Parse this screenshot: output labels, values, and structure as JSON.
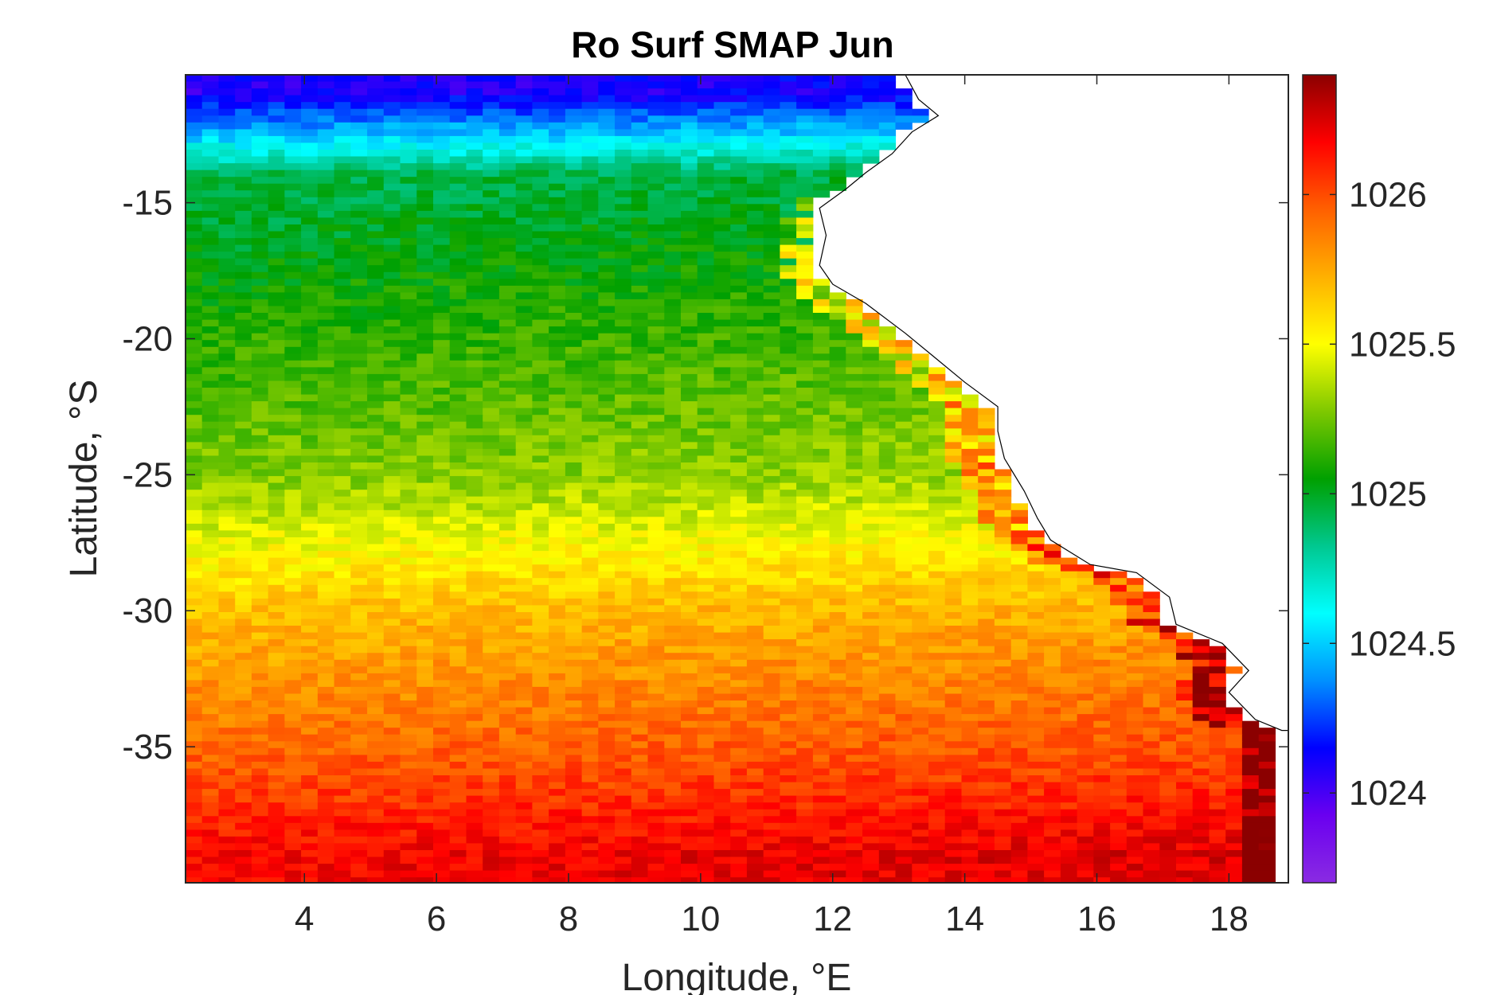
{
  "chart_data": {
    "type": "heatmap",
    "title": "Ro Surf SMAP Jun",
    "xlabel": "Longitude, °E",
    "ylabel": "Latitude, °S",
    "xlim": [
      2.2,
      18.9
    ],
    "ylim": [
      -40,
      -10.3
    ],
    "xticks": [
      4,
      6,
      8,
      10,
      12,
      14,
      16,
      18
    ],
    "yticks": [
      -15,
      -20,
      -25,
      -30,
      -35
    ],
    "colorbar": {
      "range": [
        1023.7,
        1026.4
      ],
      "ticks": [
        1024,
        1024.5,
        1025,
        1025.5,
        1026
      ],
      "colormap": [
        "#8a2be2",
        "#6a00f0",
        "#0000ff",
        "#0090ff",
        "#00ffff",
        "#00c890",
        "#00a000",
        "#7ec800",
        "#ffff00",
        "#ffb000",
        "#ff6000",
        "#ff0000",
        "#8b0000"
      ]
    },
    "grid_resolution_deg": 0.25,
    "field_description_points": [
      {
        "lat": -11,
        "value": 1024.1
      },
      {
        "lat": -12.5,
        "value": 1024.5
      },
      {
        "lat": -14,
        "value": 1024.95
      },
      {
        "lat": -20,
        "value": 1025.15
      },
      {
        "lat": -25,
        "value": 1025.3
      },
      {
        "lat": -30,
        "value": 1025.7
      },
      {
        "lat": -35,
        "value": 1025.95
      },
      {
        "lat": -39,
        "value": 1026.2
      }
    ],
    "coastline": [
      [
        13.1,
        -10.3
      ],
      [
        13.3,
        -11.2
      ],
      [
        13.6,
        -11.8
      ],
      [
        13.2,
        -12.4
      ],
      [
        12.9,
        -13.2
      ],
      [
        12.5,
        -13.9
      ],
      [
        12.2,
        -14.5
      ],
      [
        11.8,
        -15.2
      ],
      [
        11.9,
        -16.2
      ],
      [
        11.8,
        -17.3
      ],
      [
        12.0,
        -18.0
      ],
      [
        12.5,
        -18.7
      ],
      [
        13.1,
        -19.8
      ],
      [
        13.5,
        -20.6
      ],
      [
        14.0,
        -21.6
      ],
      [
        14.5,
        -22.5
      ],
      [
        14.5,
        -23.4
      ],
      [
        14.6,
        -24.4
      ],
      [
        14.9,
        -25.6
      ],
      [
        15.1,
        -26.6
      ],
      [
        15.3,
        -27.4
      ],
      [
        15.9,
        -28.3
      ],
      [
        16.6,
        -28.6
      ],
      [
        17.1,
        -29.5
      ],
      [
        17.2,
        -30.5
      ],
      [
        17.9,
        -31.2
      ],
      [
        18.3,
        -32.2
      ],
      [
        18.0,
        -33.0
      ],
      [
        18.4,
        -34.0
      ],
      [
        18.8,
        -34.4
      ],
      [
        18.9,
        -34.4
      ]
    ]
  }
}
